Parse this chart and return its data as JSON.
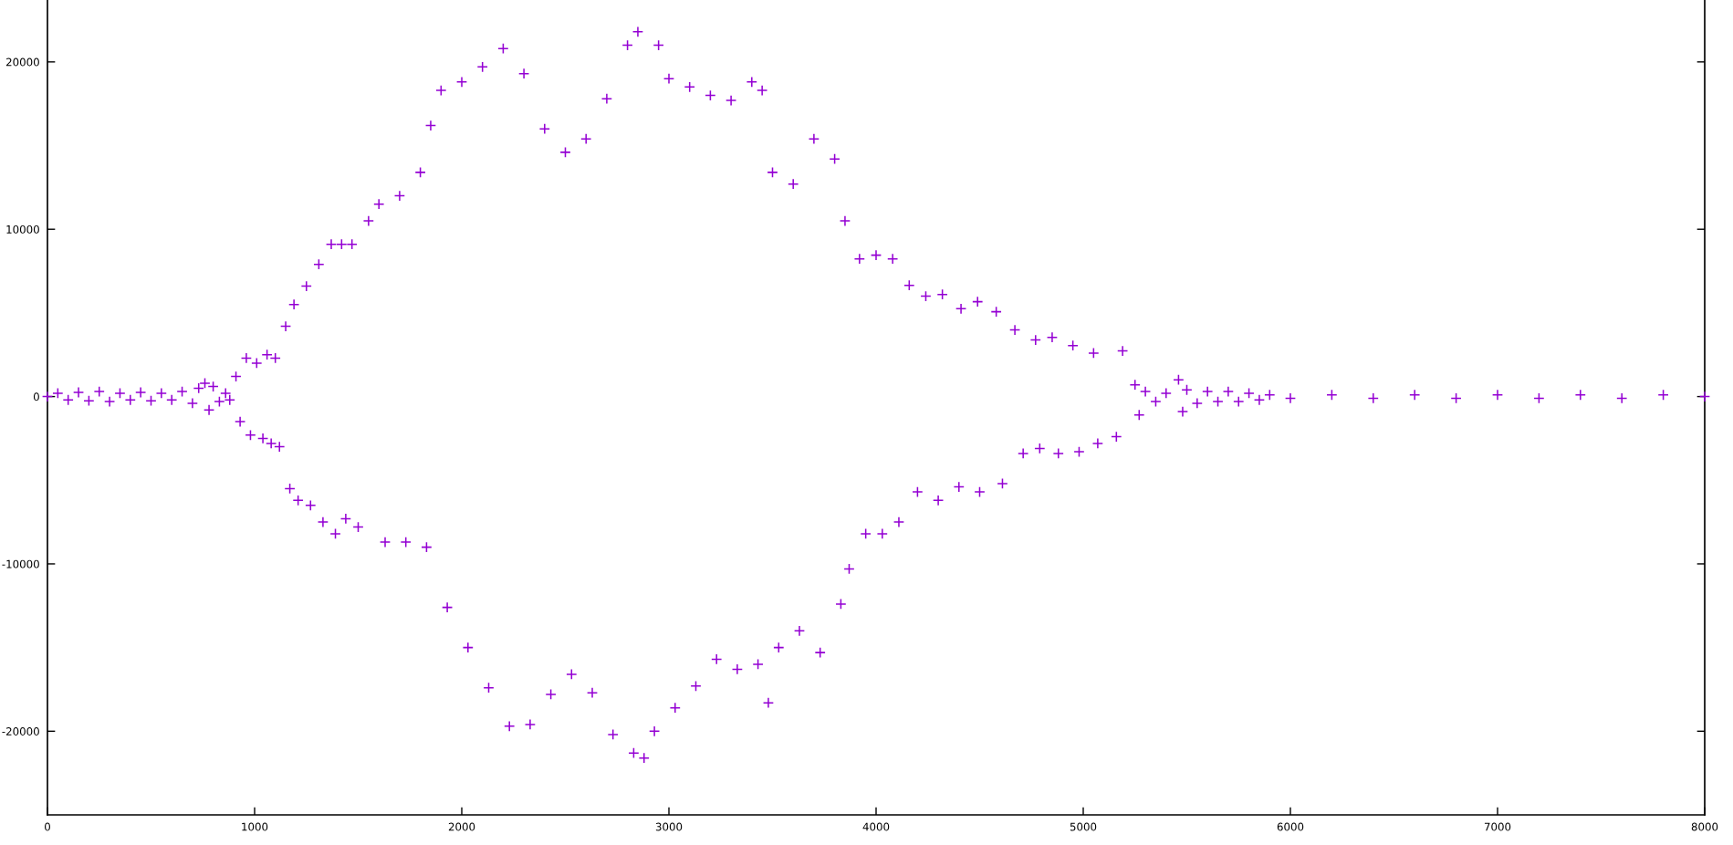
{
  "chart_data": {
    "type": "scatter",
    "marker": "cross",
    "color": "#9400d3",
    "grid": false,
    "legend": false,
    "xlim": [
      0,
      8000
    ],
    "ylim": [
      -25000,
      23700
    ],
    "xticks": [
      0,
      1000,
      2000,
      3000,
      4000,
      5000,
      6000,
      7000,
      8000
    ],
    "yticks": [
      -20000,
      -10000,
      0,
      10000,
      20000
    ],
    "x": [
      0,
      50,
      100,
      150,
      200,
      250,
      300,
      350,
      400,
      450,
      500,
      550,
      600,
      650,
      700,
      730,
      760,
      780,
      800,
      830,
      860,
      880,
      910,
      930,
      960,
      980,
      1010,
      1040,
      1060,
      1080,
      1100,
      1120,
      1150,
      1170,
      1190,
      1210,
      1250,
      1270,
      1310,
      1330,
      1370,
      1390,
      1420,
      1440,
      1470,
      1500,
      1550,
      1600,
      1630,
      1700,
      1730,
      1800,
      1830,
      1850,
      1900,
      1930,
      2000,
      2030,
      2100,
      2130,
      2200,
      2230,
      2300,
      2330,
      2400,
      2430,
      2500,
      2530,
      2600,
      2630,
      2700,
      2730,
      2800,
      2830,
      2850,
      2880,
      2930,
      2950,
      3000,
      3030,
      3100,
      3130,
      3200,
      3230,
      3300,
      3330,
      3400,
      3430,
      3450,
      3480,
      3500,
      3530,
      3600,
      3630,
      3700,
      3730,
      3800,
      3830,
      3850,
      3870,
      3920,
      3950,
      4000,
      4030,
      4080,
      4110,
      4160,
      4200,
      4240,
      4300,
      4320,
      4400,
      4410,
      4490,
      4500,
      4580,
      4610,
      4670,
      4710,
      4770,
      4790,
      4850,
      4880,
      4950,
      4980,
      5050,
      5070,
      5160,
      5190,
      5250,
      5270,
      5300,
      5350,
      5400,
      5460,
      5480,
      5500,
      5550,
      5600,
      5650,
      5700,
      5750,
      5800,
      5850,
      5900,
      6000,
      6200,
      6400,
      6600,
      6800,
      7000,
      7200,
      7400,
      7600,
      7800,
      8000
    ],
    "values": [
      0,
      200,
      -200,
      250,
      -250,
      300,
      -300,
      200,
      -200,
      250,
      -250,
      200,
      -200,
      300,
      -400,
      500,
      800,
      -800,
      600,
      -300,
      200,
      -200,
      1200,
      -1500,
      2300,
      -2300,
      2000,
      -2500,
      2500,
      -2800,
      2300,
      -3000,
      4200,
      -5500,
      5500,
      -6200,
      6600,
      -6500,
      7900,
      -7500,
      9100,
      -8200,
      9100,
      -7300,
      9100,
      -7800,
      10500,
      11500,
      -8700,
      12000,
      -8700,
      13400,
      -9000,
      16200,
      18300,
      -12600,
      18800,
      -15000,
      19700,
      -17400,
      20800,
      -19700,
      19300,
      -19600,
      16000,
      -17800,
      14600,
      -16600,
      15400,
      -17700,
      17800,
      -20200,
      21000,
      -21300,
      21800,
      -21600,
      -20000,
      21000,
      19000,
      -18600,
      18500,
      -17300,
      18000,
      -15700,
      17700,
      -16300,
      18800,
      -16000,
      18300,
      -18300,
      13400,
      -15000,
      12700,
      -14000,
      15400,
      -15300,
      14200,
      -12400,
      10500,
      -10300,
      8230,
      -8200,
      8450,
      -8200,
      8230,
      -7500,
      6650,
      -5700,
      6000,
      -6200,
      6100,
      -5400,
      5250,
      5670,
      -5700,
      5070,
      -5200,
      3980,
      -3400,
      3380,
      -3100,
      3540,
      -3400,
      3050,
      -3300,
      2600,
      -2800,
      -2400,
      2730,
      700,
      -1100,
      300,
      -300,
      200,
      1000,
      -900,
      400,
      -400,
      300,
      -300,
      300,
      -300,
      200,
      -200,
      100,
      -100,
      100,
      -100,
      100,
      -100,
      100,
      -100,
      100,
      -100,
      100,
      0
    ]
  }
}
